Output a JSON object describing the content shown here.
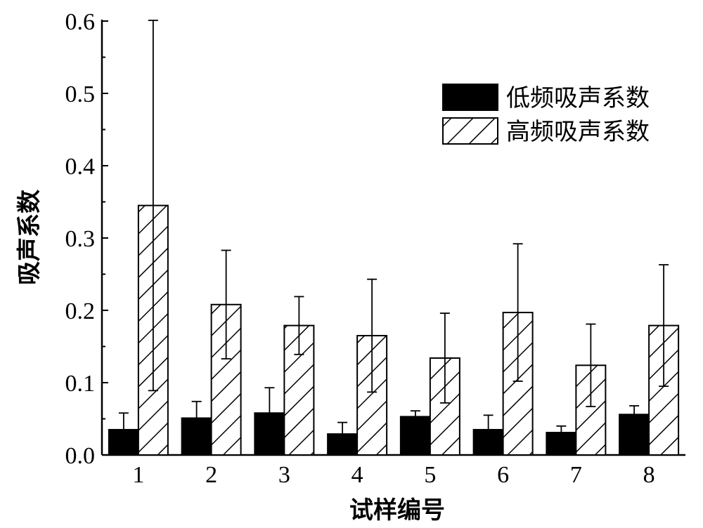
{
  "chart_data": {
    "type": "bar",
    "xlabel": "试样编号",
    "ylabel": "吸声系数",
    "ylim": [
      0,
      0.6
    ],
    "yticks": [
      "0.0",
      "0.1",
      "0.2",
      "0.3",
      "0.4",
      "0.5",
      "0.6"
    ],
    "categories": [
      "1",
      "2",
      "3",
      "4",
      "5",
      "6",
      "7",
      "8"
    ],
    "legend_position": "top-right",
    "series": [
      {
        "name": "低频吸声系数",
        "fill": "solid-black",
        "values": [
          0.035,
          0.051,
          0.058,
          0.029,
          0.053,
          0.035,
          0.031,
          0.056
        ],
        "error": [
          0.023,
          0.023,
          0.035,
          0.016,
          0.008,
          0.02,
          0.009,
          0.012
        ]
      },
      {
        "name": "高频吸声系数",
        "fill": "diagonal-hatch",
        "values": [
          0.345,
          0.208,
          0.179,
          0.165,
          0.134,
          0.197,
          0.124,
          0.179
        ],
        "error": [
          0.256,
          0.075,
          0.04,
          0.078,
          0.062,
          0.095,
          0.057,
          0.084
        ]
      }
    ]
  }
}
